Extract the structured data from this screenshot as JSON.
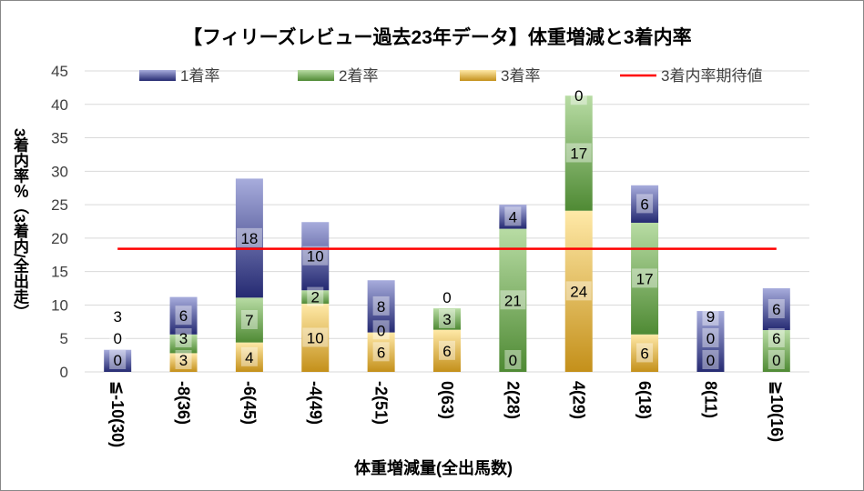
{
  "chart_data": {
    "type": "bar",
    "stacked": true,
    "title": "【フィリーズレビュー過去23年データ】体重増減と3着内率",
    "xlabel": "体重増減量(全出馬数)",
    "ylabel": "3着内率％（3着内/全出走）",
    "ylim": [
      0,
      45
    ],
    "yticks": [
      0,
      5,
      10,
      15,
      20,
      25,
      30,
      35,
      40,
      45
    ],
    "grid": true,
    "legend_position": "top",
    "categories": [
      "≦-10(30)",
      "-8(36)",
      "-6(45)",
      "-4(49)",
      "-2(51)",
      "0(63)",
      "2(28)",
      "4(29)",
      "6(18)",
      "8(11)",
      "≧10(16)"
    ],
    "series": [
      {
        "name": "3着率",
        "values": [
          0,
          2.8,
          4.4,
          10.2,
          5.9,
          6.3,
          0,
          24.1,
          5.6,
          0,
          0
        ],
        "labels": [
          "0",
          "3",
          "4",
          "10",
          "6",
          "6",
          "0",
          "24",
          "6",
          "0",
          "0"
        ],
        "color": "#d9a834"
      },
      {
        "name": "2着率",
        "values": [
          0,
          2.8,
          6.7,
          2.0,
          0,
          3.2,
          21.4,
          17.2,
          16.7,
          0,
          6.25
        ],
        "labels": [
          "0",
          "3",
          "7",
          "2",
          "0",
          "3",
          "21",
          "17",
          "17",
          "0",
          "6"
        ],
        "color": "#6ca14e"
      },
      {
        "name": "1着率",
        "values": [
          3.3,
          5.6,
          17.8,
          10.2,
          7.8,
          0,
          3.6,
          0,
          5.6,
          9.1,
          6.25
        ],
        "labels": [
          "3",
          "6",
          "18",
          "10",
          "8",
          "0",
          "4",
          "0",
          "6",
          "9",
          "6"
        ],
        "color": "#4a5099"
      }
    ],
    "reference_line": {
      "name": "3着内率期待値",
      "value": 18.4,
      "color": "#ff0000"
    },
    "legend": [
      "1着率",
      "2着率",
      "3着率",
      "3着内率期待値"
    ]
  }
}
